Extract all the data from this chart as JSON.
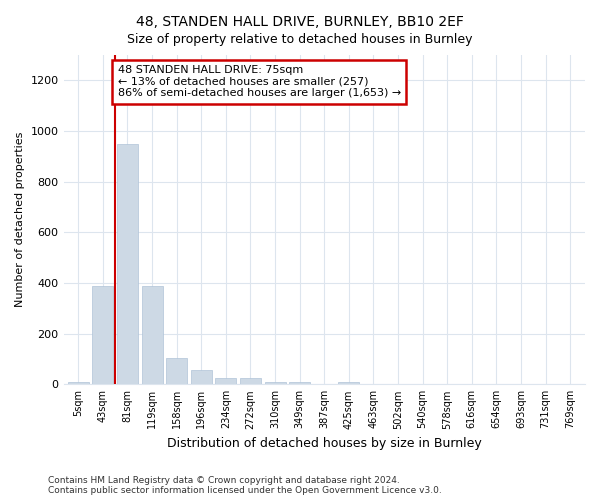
{
  "title": "48, STANDEN HALL DRIVE, BURNLEY, BB10 2EF",
  "subtitle": "Size of property relative to detached houses in Burnley",
  "xlabel": "Distribution of detached houses by size in Burnley",
  "ylabel": "Number of detached properties",
  "categories": [
    "5sqm",
    "43sqm",
    "81sqm",
    "119sqm",
    "158sqm",
    "196sqm",
    "234sqm",
    "272sqm",
    "310sqm",
    "349sqm",
    "387sqm",
    "425sqm",
    "463sqm",
    "502sqm",
    "540sqm",
    "578sqm",
    "616sqm",
    "654sqm",
    "693sqm",
    "731sqm",
    "769sqm"
  ],
  "values": [
    10,
    390,
    950,
    390,
    105,
    55,
    25,
    25,
    10,
    10,
    0,
    10,
    0,
    0,
    0,
    0,
    0,
    0,
    0,
    0,
    0
  ],
  "bar_color": "#cdd9e5",
  "bar_edge_color": "#b0c4d8",
  "annotation_text": "48 STANDEN HALL DRIVE: 75sqm\n← 13% of detached houses are smaller (257)\n86% of semi-detached houses are larger (1,653) →",
  "annotation_box_color": "#ffffff",
  "annotation_box_edge": "#cc0000",
  "red_line_color": "#cc0000",
  "red_line_x": 1.5,
  "ylim": [
    0,
    1300
  ],
  "yticks": [
    0,
    200,
    400,
    600,
    800,
    1000,
    1200
  ],
  "footer1": "Contains HM Land Registry data © Crown copyright and database right 2024.",
  "footer2": "Contains public sector information licensed under the Open Government Licence v3.0.",
  "bg_color": "#ffffff",
  "plot_bg_color": "#ffffff",
  "grid_color": "#dde5ee",
  "title_fontsize": 10,
  "subtitle_fontsize": 9,
  "ylabel_fontsize": 8,
  "xlabel_fontsize": 9,
  "tick_fontsize": 7,
  "annot_fontsize": 8
}
